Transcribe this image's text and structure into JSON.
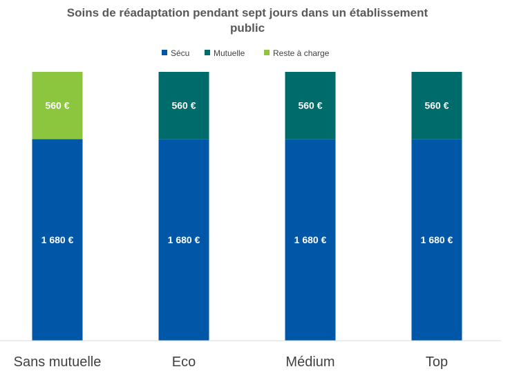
{
  "chart_data": {
    "type": "bar",
    "stacked": true,
    "title_lines": [
      "Soins de réadaptation pendant sept jours dans un établissement",
      "public"
    ],
    "categories": [
      "Sans mutuelle",
      "Eco",
      "Médium",
      "Top"
    ],
    "series": [
      {
        "name": "Sécu",
        "color": "#0057A8",
        "values": [
          1680,
          1680,
          1680,
          1680
        ],
        "labels": [
          "1 680 €",
          "1 680 €",
          "1 680 €",
          "1 680 €"
        ]
      },
      {
        "name": "Mutuelle",
        "color": "#006B6B",
        "values": [
          0,
          560,
          560,
          560
        ],
        "labels": [
          "",
          "560 €",
          "560 €",
          "560 €"
        ]
      },
      {
        "name": "Reste à charge",
        "color": "#8CC63F",
        "values": [
          560,
          0,
          0,
          0
        ],
        "labels": [
          "560 €",
          "",
          "",
          ""
        ]
      }
    ],
    "ylim": [
      0,
      2240
    ],
    "legend_position": "top",
    "grid": false
  }
}
